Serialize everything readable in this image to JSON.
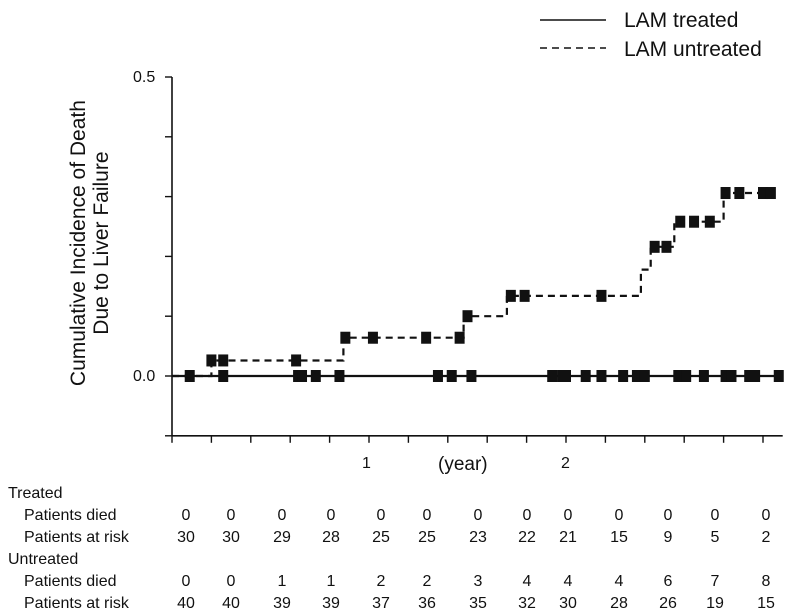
{
  "chart_data": {
    "type": "line",
    "step": true,
    "ylabel_line1": "Cumulative  Incidence  of Death",
    "ylabel_line2": "Due to Liver Failure",
    "xlabel": "(year)",
    "y_ticks": [
      "0.5",
      "0.0"
    ],
    "x_tick_labels": [
      "1",
      "2"
    ],
    "xlim": [
      0,
      3.1
    ],
    "ylim": [
      -0.1,
      0.5
    ],
    "series": [
      {
        "name": "LAM treated",
        "style": "solid",
        "steps": [
          [
            0,
            0.0
          ],
          [
            3.1,
            0.0
          ]
        ],
        "censored": [
          0.09,
          0.26,
          0.64,
          0.66,
          0.73,
          0.85,
          1.35,
          1.42,
          1.52,
          1.93,
          1.98,
          2.0,
          2.1,
          2.18,
          2.29,
          2.36,
          2.4,
          2.57,
          2.61,
          2.7,
          2.81,
          2.84,
          2.93,
          2.96,
          3.08
        ]
      },
      {
        "name": "LAM untreated",
        "style": "dashed",
        "steps": [
          [
            0,
            0.0
          ],
          [
            0.2,
            0.0
          ],
          [
            0.2,
            0.026
          ],
          [
            0.87,
            0.026
          ],
          [
            0.87,
            0.064
          ],
          [
            1.48,
            0.064
          ],
          [
            1.48,
            0.1
          ],
          [
            1.7,
            0.1
          ],
          [
            1.7,
            0.134
          ],
          [
            2.38,
            0.134
          ],
          [
            2.38,
            0.178
          ],
          [
            2.43,
            0.178
          ],
          [
            2.43,
            0.216
          ],
          [
            2.55,
            0.216
          ],
          [
            2.55,
            0.258
          ],
          [
            2.8,
            0.258
          ],
          [
            2.8,
            0.306
          ],
          [
            3.05,
            0.306
          ]
        ],
        "censored": [
          0.2,
          0.26,
          0.63,
          0.88,
          1.02,
          1.29,
          1.46,
          1.5,
          1.72,
          1.79,
          2.18,
          2.45,
          2.51,
          2.58,
          2.65,
          2.73,
          2.81,
          2.88,
          3.0,
          3.04
        ]
      }
    ]
  },
  "table": {
    "groups": [
      {
        "title": "Treated",
        "rows": [
          {
            "label": "Patients died",
            "values": [
              "0",
              "0",
              "0",
              "0",
              "0",
              "0",
              "0",
              "0",
              "0",
              "0",
              "0",
              "0",
              "0"
            ]
          },
          {
            "label": "Patients at risk",
            "values": [
              "30",
              "30",
              "29",
              "28",
              "25",
              "25",
              "23",
              "22",
              "21",
              "15",
              "9",
              "5",
              "2"
            ]
          }
        ]
      },
      {
        "title": "Untreated",
        "rows": [
          {
            "label": "Patients died",
            "values": [
              "0",
              "0",
              "1",
              "1",
              "2",
              "2",
              "3",
              "4",
              "4",
              "4",
              "6",
              "7",
              "8"
            ]
          },
          {
            "label": "Patients at risk",
            "values": [
              "40",
              "40",
              "39",
              "39",
              "37",
              "36",
              "35",
              "32",
              "30",
              "28",
              "26",
              "19",
              "15"
            ]
          }
        ]
      }
    ]
  }
}
